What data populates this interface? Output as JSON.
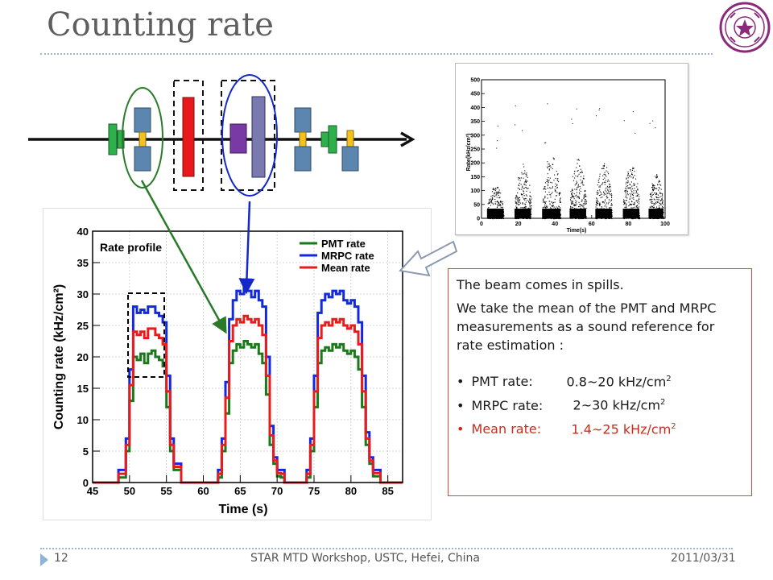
{
  "slide": {
    "title": "Counting rate",
    "page_number": "12",
    "footer_center": "STAR MTD Workshop, USTC, Hefei, China",
    "footer_date": "2011/03/31"
  },
  "colors": {
    "pmt": "#1a7a1a",
    "mrpc": "#1428e0",
    "mean": "#e81c1c",
    "title": "#5f5f5f",
    "accent_red": "#cc2a1a"
  },
  "textbox": {
    "line1": "The beam comes in spills.",
    "line2": "We take the mean of the PMT and MRPC measurements as a sound reference for rate estimation :",
    "items": [
      {
        "label": "PMT rate:",
        "value": "0.8~20 kHz/cm",
        "sup": "2",
        "color": "#1a1a1a"
      },
      {
        "label": "MRPC rate:",
        "value": "2~30 kHz/cm",
        "sup": "2",
        "color": "#1a1a1a"
      },
      {
        "label": "Mean rate:",
        "value": "1.4~25 kHz/cm",
        "sup": "2",
        "color": "#cc2a1a"
      }
    ]
  },
  "chart_data": [
    {
      "type": "line",
      "title": "Rate profile",
      "xlabel": "Time (s)",
      "ylabel": "Counting rate (kHz/cm²)",
      "xlim": [
        45,
        87
      ],
      "ylim": [
        0,
        40
      ],
      "xticks": [
        45,
        50,
        55,
        60,
        65,
        70,
        75,
        80,
        85
      ],
      "yticks": [
        0,
        5,
        10,
        15,
        20,
        25,
        30,
        35,
        40
      ],
      "legend_position": "top-right",
      "series": [
        {
          "name": "PMT rate",
          "color": "#1a7a1a",
          "x": [
            45,
            47,
            48.5,
            49.5,
            50,
            50.5,
            51,
            51.5,
            52,
            52.5,
            53,
            53.5,
            54,
            54.5,
            55,
            55.5,
            56,
            57,
            61,
            62,
            62.5,
            63,
            63.5,
            64,
            64.5,
            65,
            65.5,
            66,
            66.5,
            67,
            67.5,
            68,
            68.5,
            69,
            69.5,
            70,
            70.5,
            71,
            72,
            73,
            74,
            74.5,
            75,
            75.5,
            76,
            76.5,
            77,
            77.5,
            78,
            78.5,
            79,
            79.5,
            80,
            80.5,
            81,
            81.5,
            82,
            82.5,
            83,
            84,
            87
          ],
          "y": [
            0,
            0,
            0.8,
            5,
            13,
            20,
            19.5,
            20.5,
            19,
            20.5,
            21,
            20,
            19.5,
            18.5,
            12,
            5,
            2,
            0,
            0,
            0.8,
            5,
            11,
            19,
            21,
            22,
            21.5,
            22.5,
            22,
            21.5,
            22,
            20.5,
            19,
            14,
            6,
            3,
            1,
            0.8,
            0,
            0,
            0,
            0.8,
            5,
            12,
            19,
            21,
            21.5,
            21,
            22,
            21.5,
            22,
            21,
            20.5,
            21,
            20,
            18,
            12,
            6,
            3,
            1,
            0,
            0
          ]
        },
        {
          "name": "MRPC rate",
          "color": "#1428e0",
          "x": [
            45,
            47,
            48.5,
            49.5,
            50,
            50.5,
            51,
            51.5,
            52,
            52.5,
            53,
            53.5,
            54,
            54.5,
            55,
            55.5,
            56,
            57,
            61,
            62,
            62.5,
            63,
            63.5,
            64,
            64.5,
            65,
            65.5,
            66,
            66.5,
            67,
            67.5,
            68,
            68.5,
            69,
            69.5,
            70,
            70.5,
            71,
            72,
            73,
            74,
            74.5,
            75,
            75.5,
            76,
            76.5,
            77,
            77.5,
            78,
            78.5,
            79,
            79.5,
            80,
            80.5,
            81,
            81.5,
            82,
            82.5,
            83,
            84,
            87
          ],
          "y": [
            0,
            0,
            2,
            7,
            18,
            28,
            27,
            27.5,
            27,
            28,
            28,
            27,
            26.5,
            25.5,
            17,
            7,
            3,
            0,
            0,
            2,
            7,
            16,
            26,
            29,
            30.5,
            30,
            31,
            30.5,
            29.5,
            30.5,
            29,
            28,
            20,
            9,
            4,
            2,
            2,
            0,
            0,
            0,
            2,
            7,
            17,
            27,
            29,
            30,
            29.5,
            30.5,
            30,
            30.5,
            29,
            28.5,
            29,
            28,
            25.5,
            17,
            8,
            4,
            2,
            0,
            0
          ]
        },
        {
          "name": "Mean rate",
          "color": "#e81c1c",
          "x": [
            45,
            47,
            48.5,
            49.5,
            50,
            50.5,
            51,
            51.5,
            52,
            52.5,
            53,
            53.5,
            54,
            54.5,
            55,
            55.5,
            56,
            57,
            61,
            62,
            62.5,
            63,
            63.5,
            64,
            64.5,
            65,
            65.5,
            66,
            66.5,
            67,
            67.5,
            68,
            68.5,
            69,
            69.5,
            70,
            70.5,
            71,
            72,
            73,
            74,
            74.5,
            75,
            75.5,
            76,
            76.5,
            77,
            77.5,
            78,
            78.5,
            79,
            79.5,
            80,
            80.5,
            81,
            81.5,
            82,
            82.5,
            83,
            84,
            87
          ],
          "y": [
            0,
            0,
            1.4,
            6,
            15.5,
            24,
            23.5,
            24,
            23,
            24.5,
            24.5,
            23.5,
            23,
            22,
            14.5,
            6,
            2.5,
            0,
            0,
            1.4,
            6,
            13.5,
            22.5,
            25,
            26,
            25.5,
            26.5,
            26,
            25.5,
            26,
            25,
            23.5,
            17,
            7.5,
            3.5,
            1.5,
            1.4,
            0,
            0,
            0,
            1.4,
            6,
            14.5,
            23,
            25,
            25.5,
            25,
            26,
            25.5,
            26,
            25,
            24.5,
            25,
            24,
            22,
            14.5,
            7,
            3.5,
            1.5,
            0,
            0
          ]
        }
      ]
    },
    {
      "type": "scatter",
      "xlabel": "Time(s)",
      "ylabel": "Rate(kHz/cm²)",
      "xlim": [
        0,
        100
      ],
      "ylim": [
        0,
        500
      ],
      "xticks": [
        0,
        20,
        40,
        60,
        80,
        100
      ],
      "yticks": [
        0,
        50,
        100,
        150,
        200,
        250,
        300,
        350,
        400,
        450,
        500
      ],
      "spills": [
        {
          "start": 3,
          "end": 12,
          "peak": 120
        },
        {
          "start": 18,
          "end": 27,
          "peak": 200
        },
        {
          "start": 33,
          "end": 43,
          "peak": 240
        },
        {
          "start": 48,
          "end": 57,
          "peak": 215
        },
        {
          "start": 62,
          "end": 71,
          "peak": 200
        },
        {
          "start": 77,
          "end": 86,
          "peak": 195
        },
        {
          "start": 91,
          "end": 99,
          "peak": 160
        }
      ]
    }
  ]
}
